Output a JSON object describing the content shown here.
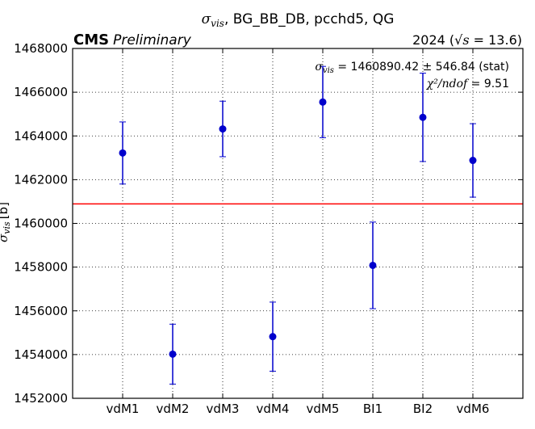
{
  "chart_data": {
    "type": "scatter",
    "title": "σvis, BG_BB_DB, pcchd5, QG",
    "title_symbol": "σ",
    "title_subscript": "vis",
    "title_rest": ", BG_BB_DB, pcchd5, QG",
    "experiment_label": "CMS",
    "experiment_sublabel": "Preliminary",
    "energy_label": "2024 (√s = 13.6)",
    "energy_prefix": "2024 (",
    "energy_sqrt": "√s",
    "energy_suffix": " = 13.6)",
    "ylabel": "σvis [b]",
    "ylabel_symbol": "σ",
    "ylabel_subscript": "vis",
    "ylabel_unit": "[b]",
    "fit_label": "σvis = 1460890.42 ± 546.84 (stat)",
    "fit_symbol": "σ",
    "fit_subscript": "vis",
    "fit_text": " = 1460890.42 ± 546.84 (stat)",
    "chi2_label": "χ²/ndof = 9.51",
    "chi2_math": "χ²/ndof",
    "chi2_value": " = 9.51",
    "categories": [
      "vdM1",
      "vdM2",
      "vdM3",
      "vdM4",
      "vdM5",
      "BI1",
      "BI2",
      "vdM6"
    ],
    "values": [
      1463220,
      1454020,
      1464320,
      1454820,
      1465550,
      1458080,
      1464850,
      1462880
    ],
    "errors": [
      1420,
      1370,
      1270,
      1580,
      1630,
      1980,
      2020,
      1680
    ],
    "fit_value": 1460890.42,
    "fit_error": 546.84,
    "ylim": [
      1452000,
      1468000
    ],
    "yticks": [
      1452000,
      1454000,
      1456000,
      1458000,
      1460000,
      1462000,
      1464000,
      1466000,
      1468000
    ],
    "ytick_labels": [
      "1452000",
      "1454000",
      "1456000",
      "1458000",
      "1460000",
      "1462000",
      "1464000",
      "1466000",
      "1468000"
    ],
    "grid": true,
    "colors": {
      "points": "#0000cc",
      "fit_line": "#ff0000",
      "grid": "#000000"
    }
  }
}
